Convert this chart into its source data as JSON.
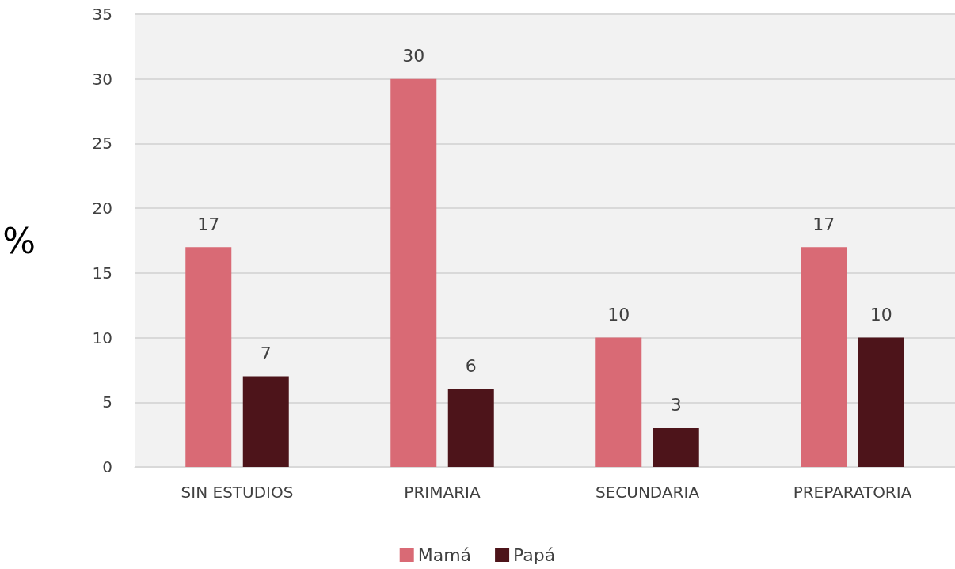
{
  "chart_data": {
    "type": "bar",
    "ylabel": "%",
    "categories": [
      "SIN ESTUDIOS",
      "PRIMARIA",
      "SECUNDARIA",
      "PREPARATORIA"
    ],
    "series": [
      {
        "name": "Mamá",
        "color": "#d96a75",
        "values": [
          17,
          30,
          10,
          17
        ]
      },
      {
        "name": "Papá",
        "color": "#4d141a",
        "values": [
          7,
          6,
          3,
          10
        ]
      }
    ],
    "ylim": [
      0,
      35
    ],
    "yticks": [
      0,
      5,
      10,
      15,
      20,
      25,
      30,
      35
    ],
    "grid": "y",
    "legend": "bottom",
    "data_labels": true
  }
}
